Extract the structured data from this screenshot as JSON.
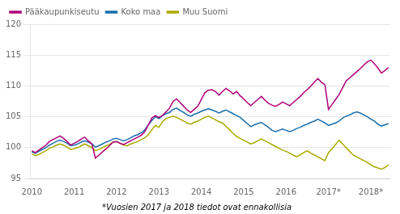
{
  "chart_data": {
    "type": "line",
    "annotations": [
      "*Vuosien 2017 ja 2018 tiedot ovat ennakollisia"
    ],
    "categories": [
      "2010",
      null,
      null,
      null,
      null,
      null,
      null,
      null,
      null,
      null,
      null,
      null,
      "2011",
      null,
      null,
      null,
      null,
      null,
      null,
      null,
      null,
      null,
      null,
      null,
      "2012",
      null,
      null,
      null,
      null,
      null,
      null,
      null,
      null,
      null,
      null,
      null,
      "2013",
      null,
      null,
      null,
      null,
      null,
      null,
      null,
      null,
      null,
      null,
      null,
      "2014",
      null,
      null,
      null,
      null,
      null,
      null,
      null,
      null,
      null,
      null,
      null,
      "2015",
      null,
      null,
      null,
      null,
      null,
      null,
      null,
      null,
      null,
      null,
      null,
      "2016",
      null,
      null,
      null,
      null,
      null,
      null,
      null,
      null,
      null,
      null,
      null,
      "2017*",
      null,
      null,
      null,
      null,
      null,
      null,
      null,
      null,
      null,
      null,
      null,
      "2018*",
      null,
      null,
      null,
      null,
      null
    ],
    "series": [
      {
        "name": "Pääkaupunkiseutu",
        "color": "#b0007a",
        "values": [
          99.5,
          99.2,
          99.6,
          100.0,
          100.4,
          101.0,
          101.3,
          101.6,
          101.9,
          101.5,
          101.0,
          100.4,
          100.7,
          101.0,
          101.4,
          101.7,
          101.1,
          100.6,
          98.3,
          98.8,
          99.3,
          99.8,
          100.3,
          100.9,
          101.0,
          100.7,
          100.5,
          100.8,
          101.1,
          101.4,
          101.7,
          102.0,
          102.6,
          103.7,
          104.8,
          105.2,
          104.9,
          105.2,
          105.8,
          106.4,
          107.5,
          107.9,
          107.3,
          106.7,
          106.1,
          105.7,
          106.2,
          106.7,
          107.8,
          108.9,
          109.3,
          109.4,
          109.1,
          108.5,
          109.1,
          109.6,
          109.2,
          108.7,
          109.1,
          108.4,
          107.9,
          107.3,
          106.8,
          107.3,
          107.8,
          108.3,
          107.7,
          107.2,
          106.9,
          106.7,
          107.0,
          107.4,
          107.1,
          106.8,
          107.3,
          107.8,
          108.3,
          108.9,
          109.4,
          110.0,
          110.6,
          111.2,
          110.6,
          110.2,
          106.2,
          107.0,
          107.8,
          108.6,
          109.7,
          110.8,
          111.3,
          111.8,
          112.3,
          112.8,
          113.4,
          113.9,
          114.2,
          113.6,
          112.9,
          112.1,
          112.5,
          113.0
        ]
      },
      {
        "name": "Koko maa",
        "color": "#1a6faf",
        "values": [
          99.3,
          99.1,
          99.4,
          99.7,
          100.0,
          100.4,
          100.7,
          101.0,
          101.2,
          101.0,
          100.7,
          100.3,
          100.4,
          100.6,
          100.9,
          101.1,
          100.9,
          100.6,
          100.1,
          100.3,
          100.6,
          100.9,
          101.1,
          101.4,
          101.5,
          101.3,
          101.1,
          101.3,
          101.6,
          101.9,
          102.1,
          102.4,
          102.9,
          103.7,
          104.4,
          105.0,
          104.7,
          105.2,
          105.5,
          105.7,
          106.2,
          106.4,
          106.0,
          105.7,
          105.3,
          105.1,
          105.4,
          105.6,
          105.9,
          106.1,
          106.3,
          106.1,
          105.9,
          105.6,
          105.9,
          106.1,
          105.8,
          105.5,
          105.2,
          104.9,
          104.4,
          103.9,
          103.4,
          103.7,
          103.9,
          104.1,
          103.7,
          103.3,
          102.8,
          102.6,
          102.8,
          103.0,
          102.8,
          102.6,
          102.8,
          103.1,
          103.3,
          103.6,
          103.8,
          104.1,
          104.3,
          104.6,
          104.3,
          104.0,
          103.6,
          103.8,
          104.0,
          104.3,
          104.8,
          105.1,
          105.3,
          105.6,
          105.8,
          105.6,
          105.3,
          105.0,
          104.6,
          104.3,
          103.8,
          103.5,
          103.7,
          103.9
        ]
      },
      {
        "name": "Muu Suomi",
        "color": "#aaaa00",
        "values": [
          99.0,
          98.7,
          98.9,
          99.2,
          99.5,
          99.9,
          100.1,
          100.4,
          100.6,
          100.4,
          100.1,
          99.7,
          99.8,
          100.0,
          100.3,
          100.6,
          100.3,
          100.0,
          99.5,
          99.7,
          100.0,
          100.3,
          100.5,
          100.9,
          101.0,
          100.7,
          100.4,
          100.3,
          100.6,
          100.8,
          101.0,
          101.3,
          101.6,
          102.1,
          102.9,
          103.6,
          103.3,
          104.2,
          104.7,
          104.9,
          105.1,
          104.9,
          104.6,
          104.3,
          104.0,
          103.8,
          104.1,
          104.3,
          104.6,
          104.9,
          105.1,
          104.8,
          104.5,
          104.2,
          104.0,
          103.4,
          102.9,
          102.3,
          101.8,
          101.5,
          101.2,
          100.9,
          100.6,
          100.8,
          101.1,
          101.4,
          101.1,
          100.8,
          100.5,
          100.2,
          99.9,
          99.6,
          99.4,
          99.1,
          98.8,
          98.5,
          98.8,
          99.2,
          99.5,
          99.1,
          98.8,
          98.5,
          98.2,
          97.9,
          99.2,
          99.8,
          100.5,
          101.2,
          100.6,
          100.0,
          99.4,
          98.8,
          98.5,
          98.2,
          97.9,
          97.6,
          97.2,
          96.9,
          96.7,
          96.5,
          96.8,
          97.2
        ]
      }
    ],
    "ylim": [
      95,
      120
    ],
    "yticks": [
      95,
      100,
      105,
      110,
      115,
      120
    ],
    "grid": "y",
    "legend": "upper left"
  }
}
